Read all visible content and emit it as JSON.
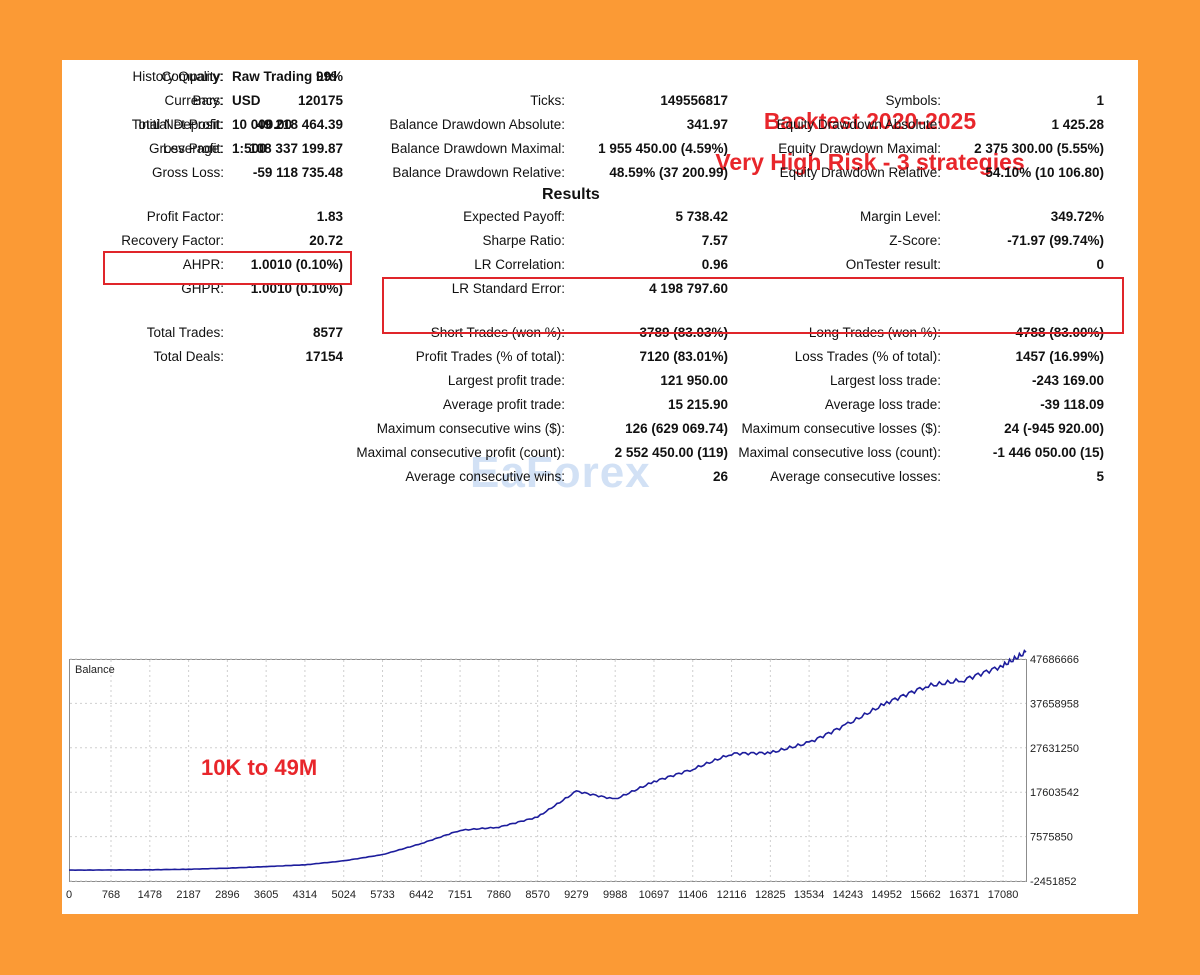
{
  "header": {
    "company_label": "Company:",
    "company": "Raw Trading Ltd",
    "currency_label": "Currency:",
    "currency": "USD",
    "deposit_label": "Initial Deposit:",
    "deposit": "10 000.00",
    "leverage_label": "Leverage:",
    "leverage": "1:500"
  },
  "banner": {
    "line1": "Backtest 2020-2025",
    "line2": "Very High Risk - 3 strategies"
  },
  "results_title": "Results",
  "stats": {
    "col1": [
      {
        "label": "History Quality:",
        "value": "99%"
      },
      {
        "label": "Bars:",
        "value": "120175"
      },
      {
        "label": "Total Net Profit:",
        "value": "49 218 464.39"
      },
      {
        "label": "Gross Profit:",
        "value": "108 337 199.87"
      },
      {
        "label": "Gross Loss:",
        "value": "-59 118 735.48"
      },
      {
        "label": "Profit Factor:",
        "value": "1.83"
      },
      {
        "label": "Recovery Factor:",
        "value": "20.72"
      },
      {
        "label": "AHPR:",
        "value": "1.0010 (0.10%)"
      },
      {
        "label": "GHPR:",
        "value": "1.0010 (0.10%)"
      },
      {
        "label": "Total Trades:",
        "value": "8577"
      },
      {
        "label": "Total Deals:",
        "value": "17154"
      }
    ],
    "col2": [
      {
        "label": "Ticks:",
        "value": "149556817"
      },
      {
        "label": "Balance Drawdown Absolute:",
        "value": "341.97"
      },
      {
        "label": "Balance Drawdown Maximal:",
        "value": "1 955 450.00 (4.59%)"
      },
      {
        "label": "Balance Drawdown Relative:",
        "value": "48.59% (37 200.99)"
      },
      {
        "label": "Expected Payoff:",
        "value": "5 738.42"
      },
      {
        "label": "Sharpe Ratio:",
        "value": "7.57"
      },
      {
        "label": "LR Correlation:",
        "value": "0.96"
      },
      {
        "label": "LR Standard Error:",
        "value": "4 198 797.60"
      },
      {
        "label": "Short Trades (won %):",
        "value": "3789 (83.03%)"
      },
      {
        "label": "Profit Trades (% of total):",
        "value": "7120 (83.01%)"
      },
      {
        "label": "Largest profit trade:",
        "value": "121 950.00"
      },
      {
        "label": "Average profit trade:",
        "value": "15 215.90"
      },
      {
        "label": "Maximum consecutive wins ($):",
        "value": "126 (629 069.74)"
      },
      {
        "label": "Maximal consecutive profit (count):",
        "value": "2 552 450.00 (119)"
      },
      {
        "label": "Average consecutive wins:",
        "value": "26"
      }
    ],
    "col3": [
      {
        "label": "Symbols:",
        "value": "1"
      },
      {
        "label": "Equity Drawdown Absolute:",
        "value": "1 425.28"
      },
      {
        "label": "Equity Drawdown Maximal:",
        "value": "2 375 300.00 (5.55%)"
      },
      {
        "label": "Equity Drawdown Relative:",
        "value": "54.10% (10 106.80)"
      },
      {
        "label": "Margin Level:",
        "value": "349.72%"
      },
      {
        "label": "Z-Score:",
        "value": "-71.97 (99.74%)"
      },
      {
        "label": "OnTester result:",
        "value": "0"
      },
      {
        "label": "Long Trades (won %):",
        "value": "4788 (83.00%)"
      },
      {
        "label": "Loss Trades (% of total):",
        "value": "1457 (16.99%)"
      },
      {
        "label": "Largest loss trade:",
        "value": "-243 169.00"
      },
      {
        "label": "Average loss trade:",
        "value": "-39 118.09"
      },
      {
        "label": "Maximum consecutive losses ($):",
        "value": "24 (-945 920.00)"
      },
      {
        "label": "Maximal consecutive loss (count):",
        "value": "-1 446 050.00 (15)"
      },
      {
        "label": "Average consecutive losses:",
        "value": "5"
      }
    ]
  },
  "watermark": "EaForex",
  "chart_data": {
    "type": "line",
    "title": "Balance",
    "annotation": "10K to 49M",
    "x_ticks": [
      "0",
      "768",
      "1478",
      "2187",
      "2896",
      "3605",
      "4314",
      "5024",
      "5733",
      "6442",
      "7151",
      "7860",
      "8570",
      "9279",
      "9988",
      "10697",
      "11406",
      "12116",
      "12825",
      "13534",
      "14243",
      "14952",
      "15662",
      "16371",
      "17080"
    ],
    "y_ticks": [
      "47686666",
      "37658958",
      "27631250",
      "17603542",
      "7575850",
      "-2451852"
    ],
    "ylim": [
      -2451852,
      47686666
    ],
    "xlim": [
      0,
      17500
    ],
    "grid": true,
    "line_color": "#1c1c9c",
    "series": [
      {
        "x": [
          0,
          768,
          1478,
          2187,
          2896,
          3605,
          4314,
          5024,
          5733,
          6442,
          7151,
          7860,
          8570,
          9279,
          9988,
          10697,
          11406,
          12116,
          12825,
          13534,
          14243,
          14952,
          15662,
          16371,
          17080,
          17500
        ],
        "y": [
          10000,
          30000,
          80000,
          200000,
          450000,
          800000,
          1200000,
          2100000,
          3500000,
          6000000,
          9000000,
          9700000,
          12000000,
          17800000,
          16000000,
          20000000,
          22800000,
          26300000,
          26500000,
          28800000,
          33000000,
          37800000,
          41500000,
          43000000,
          46200000,
          49218464
        ]
      }
    ]
  }
}
